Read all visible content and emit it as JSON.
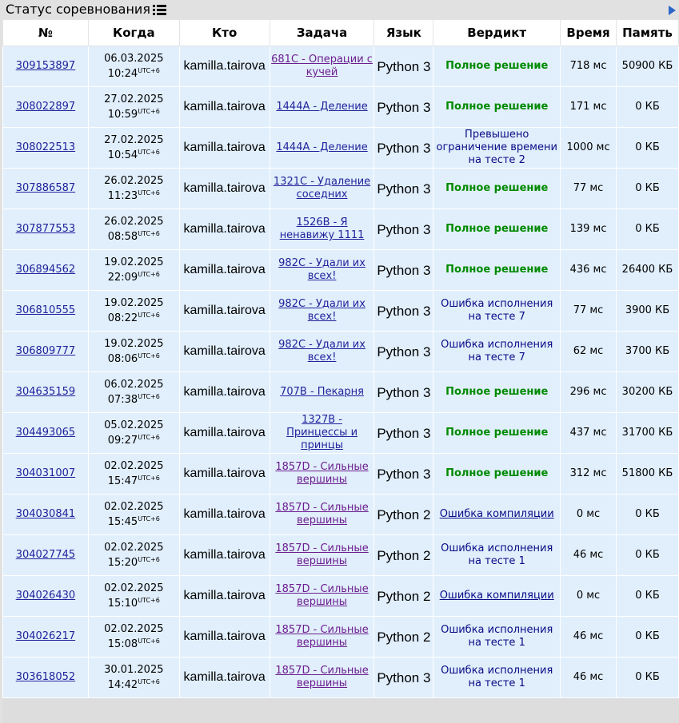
{
  "header": {
    "title": "Статус соревнования",
    "list_icon": "list-icon",
    "expand_icon": "triangle-right-icon"
  },
  "colors": {
    "accepted": "#008a00",
    "rejected": "#0a0a86",
    "link": "#22229b",
    "visited_link": "#6c1f8f",
    "row_bg": "#e1effc"
  },
  "table": {
    "columns": [
      "№",
      "Когда",
      "Кто",
      "Задача",
      "Язык",
      "Вердикт",
      "Время",
      "Память"
    ],
    "rows": [
      {
        "id": "309153897",
        "date": "06.03.2025",
        "time": "10:24",
        "tz": "UTC+6",
        "who": "kamilla.tairova",
        "problem": "681C - Операции с кучей",
        "lang": "Python 3",
        "verdict": "Полное решение",
        "status": "ok",
        "time_used": "718 мс",
        "memory": "50900 КБ"
      },
      {
        "id": "308022897",
        "date": "27.02.2025",
        "time": "10:59",
        "tz": "UTC+6",
        "who": "kamilla.tairova",
        "problem": "1444A - Деление",
        "lang": "Python 3",
        "verdict": "Полное решение",
        "status": "ok",
        "time_used": "171 мс",
        "memory": "0 КБ"
      },
      {
        "id": "308022513",
        "date": "27.02.2025",
        "time": "10:54",
        "tz": "UTC+6",
        "who": "kamilla.tairova",
        "problem": "1444A - Деление",
        "lang": "Python 3",
        "verdict": "Превышено ограничение времени на тесте 2",
        "status": "rej",
        "time_used": "1000 мс",
        "memory": "0 КБ"
      },
      {
        "id": "307886587",
        "date": "26.02.2025",
        "time": "11:23",
        "tz": "UTC+6",
        "who": "kamilla.tairova",
        "problem": "1321C - Удаление соседних",
        "lang": "Python 3",
        "verdict": "Полное решение",
        "status": "ok",
        "time_used": "77 мс",
        "memory": "0 КБ"
      },
      {
        "id": "307877553",
        "date": "26.02.2025",
        "time": "08:58",
        "tz": "UTC+6",
        "who": "kamilla.tairova",
        "problem": "1526B - Я ненавижу 1111",
        "lang": "Python 3",
        "verdict": "Полное решение",
        "status": "ok",
        "time_used": "139 мс",
        "memory": "0 КБ"
      },
      {
        "id": "306894562",
        "date": "19.02.2025",
        "time": "22:09",
        "tz": "UTC+6",
        "who": "kamilla.tairova",
        "problem": "982C - Удали их всех!",
        "lang": "Python 3",
        "verdict": "Полное решение",
        "status": "ok",
        "time_used": "436 мс",
        "memory": "26400 КБ"
      },
      {
        "id": "306810555",
        "date": "19.02.2025",
        "time": "08:22",
        "tz": "UTC+6",
        "who": "kamilla.tairova",
        "problem": "982C - Удали их всех!",
        "lang": "Python 3",
        "verdict": "Ошибка исполнения на тесте 7",
        "status": "rej",
        "time_used": "77 мс",
        "memory": "3900 КБ"
      },
      {
        "id": "306809777",
        "date": "19.02.2025",
        "time": "08:06",
        "tz": "UTC+6",
        "who": "kamilla.tairova",
        "problem": "982C - Удали их всех!",
        "lang": "Python 3",
        "verdict": "Ошибка исполнения на тесте 7",
        "status": "rej",
        "time_used": "62 мс",
        "memory": "3700 КБ"
      },
      {
        "id": "304635159",
        "date": "06.02.2025",
        "time": "07:38",
        "tz": "UTC+6",
        "who": "kamilla.tairova",
        "problem": "707B - Пекарня",
        "lang": "Python 3",
        "verdict": "Полное решение",
        "status": "ok",
        "time_used": "296 мс",
        "memory": "30200 КБ"
      },
      {
        "id": "304493065",
        "date": "05.02.2025",
        "time": "09:27",
        "tz": "UTC+6",
        "who": "kamilla.tairova",
        "problem": "1327B - Принцессы и принцы",
        "lang": "Python 3",
        "verdict": "Полное решение",
        "status": "ok",
        "time_used": "437 мс",
        "memory": "31700 КБ"
      },
      {
        "id": "304031007",
        "date": "02.02.2025",
        "time": "15:47",
        "tz": "UTC+6",
        "who": "kamilla.tairova",
        "problem": "1857D - Сильные вершины",
        "lang": "Python 3",
        "verdict": "Полное решение",
        "status": "ok",
        "time_used": "312 мс",
        "memory": "51800 КБ"
      },
      {
        "id": "304030841",
        "date": "02.02.2025",
        "time": "15:45",
        "tz": "UTC+6",
        "who": "kamilla.tairova",
        "problem": "1857D - Сильные вершины",
        "lang": "Python 2",
        "verdict": "Ошибка компиляции",
        "status": "rej-link",
        "time_used": "0 мс",
        "memory": "0 КБ"
      },
      {
        "id": "304027745",
        "date": "02.02.2025",
        "time": "15:20",
        "tz": "UTC+6",
        "who": "kamilla.tairova",
        "problem": "1857D - Сильные вершины",
        "lang": "Python 2",
        "verdict": "Ошибка исполнения на тесте 1",
        "status": "rej",
        "time_used": "46 мс",
        "memory": "0 КБ"
      },
      {
        "id": "304026430",
        "date": "02.02.2025",
        "time": "15:10",
        "tz": "UTC+6",
        "who": "kamilla.tairova",
        "problem": "1857D - Сильные вершины",
        "lang": "Python 2",
        "verdict": "Ошибка компиляции",
        "status": "rej-link",
        "time_used": "0 мс",
        "memory": "0 КБ"
      },
      {
        "id": "304026217",
        "date": "02.02.2025",
        "time": "15:08",
        "tz": "UTC+6",
        "who": "kamilla.tairova",
        "problem": "1857D - Сильные вершины",
        "lang": "Python 2",
        "verdict": "Ошибка исполнения на тесте 1",
        "status": "rej",
        "time_used": "46 мс",
        "memory": "0 КБ"
      },
      {
        "id": "303618052",
        "date": "30.01.2025",
        "time": "14:42",
        "tz": "UTC+6",
        "who": "kamilla.tairova",
        "problem": "1857D - Сильные вершины",
        "lang": "Python 3",
        "verdict": "Ошибка исполнения на тесте 1",
        "status": "rej",
        "time_used": "46 мс",
        "memory": "0 КБ"
      }
    ]
  }
}
